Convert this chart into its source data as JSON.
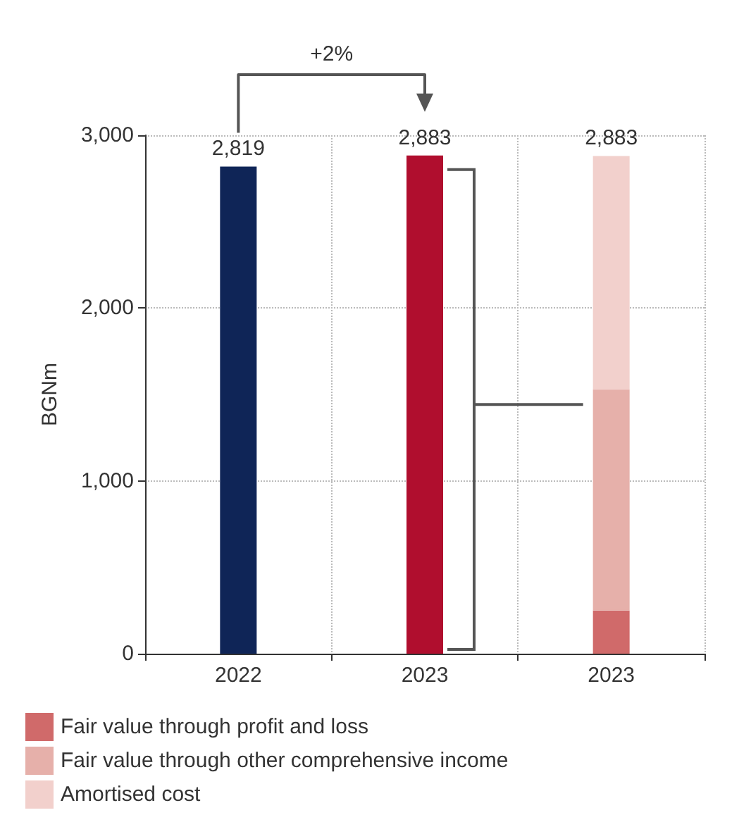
{
  "chart_data": {
    "type": "bar",
    "stacked": true,
    "ylabel": "BGNm",
    "categories": [
      "2022",
      "2023",
      "2023"
    ],
    "series": [
      {
        "color": "#0f2557",
        "values": [
          2819,
          null,
          null
        ]
      },
      {
        "color": "#b00e2e",
        "values": [
          null,
          2883,
          null
        ]
      },
      {
        "name": "Fair value through profit and loss",
        "color": "#d06a6a",
        "values": [
          null,
          null,
          250
        ]
      },
      {
        "name": "Fair value through other comprehensive income",
        "color": "#e6b0aa",
        "values": [
          null,
          null,
          1280
        ]
      },
      {
        "name": "Amortised cost",
        "color": "#f2d0cc",
        "values": [
          null,
          null,
          1350
        ]
      }
    ],
    "totals": [
      "2,819",
      "2,883",
      "2,883"
    ],
    "annotations": [
      "+2%"
    ],
    "ylim": [
      0,
      3000
    ],
    "yticks": [
      {
        "value": 0,
        "label": "0"
      },
      {
        "value": 1000,
        "label": "1,000"
      },
      {
        "value": 2000,
        "label": "2,000"
      },
      {
        "value": 3000,
        "label": "3,000"
      }
    ],
    "grid": true,
    "legend": "bottom left"
  }
}
